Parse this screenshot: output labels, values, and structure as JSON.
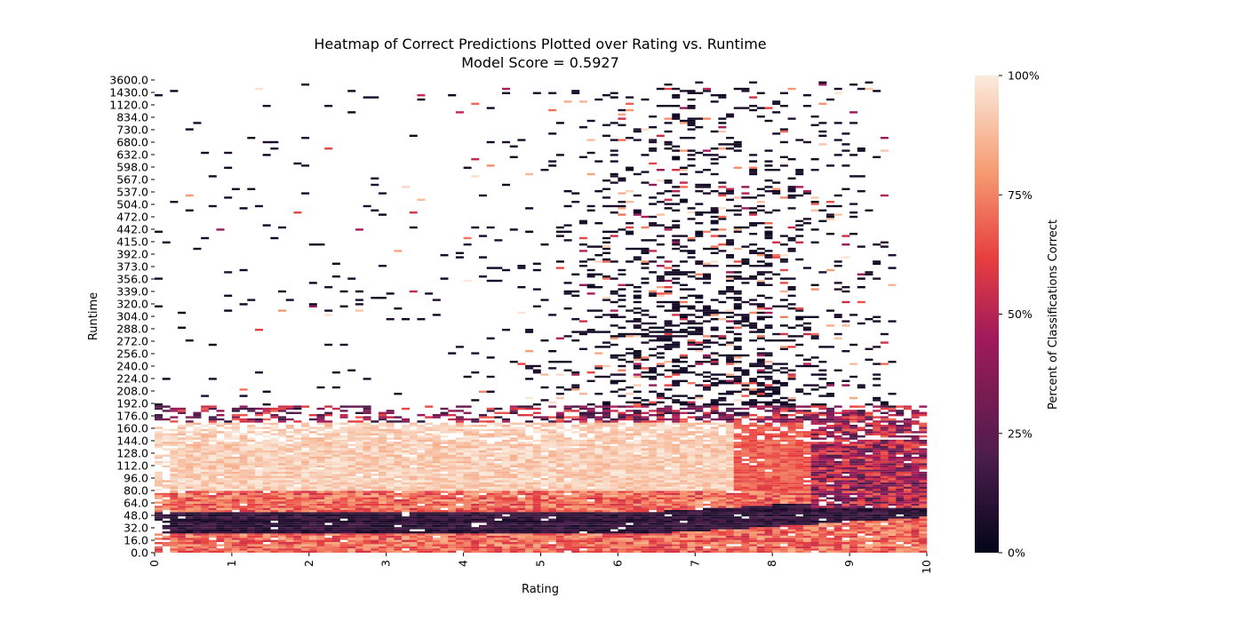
{
  "chart_data": {
    "type": "heatmap",
    "title": "Heatmap of Correct Predictions Plotted over Rating vs. Runtime",
    "subtitle": "Model Score = 0.5927",
    "xlabel": "Rating",
    "ylabel": "Runtime",
    "xlim": [
      0,
      10
    ],
    "x_ticks": [
      "0",
      "1",
      "2",
      "3",
      "4",
      "5",
      "6",
      "7",
      "8",
      "9",
      "10"
    ],
    "y_ticks": [
      "0.0",
      "16.0",
      "32.0",
      "48.0",
      "64.0",
      "80.0",
      "96.0",
      "112.0",
      "128.0",
      "144.0",
      "160.0",
      "176.0",
      "192.0",
      "208.0",
      "224.0",
      "240.0",
      "256.0",
      "272.0",
      "288.0",
      "304.0",
      "320.0",
      "339.0",
      "356.0",
      "373.0",
      "392.0",
      "415.0",
      "442.0",
      "472.0",
      "504.0",
      "537.0",
      "567.0",
      "598.0",
      "632.0",
      "680.0",
      "730.0",
      "834.0",
      "1120.0",
      "1430.0",
      "3600.0"
    ],
    "colorbar": {
      "label": "Percent of Classifications Correct",
      "ticks": [
        "0%",
        "25%",
        "50%",
        "75%",
        "100%"
      ],
      "range": [
        0,
        100
      ],
      "colormap": "rocket",
      "stops": [
        "#03051a",
        "#4c1d4b",
        "#a11a5b",
        "#e83f3f",
        "#f69c73",
        "#faebdd"
      ]
    },
    "model_score": 0.5927,
    "summary": {
      "note": "Dense band of cells at runtimes 0-200; low accuracy (dark) near runtime 30-60; high accuracy (light) near runtime 80-170; sparse scattered cells above runtime 200, mostly dark, concentrated at ratings 6-9."
    }
  }
}
